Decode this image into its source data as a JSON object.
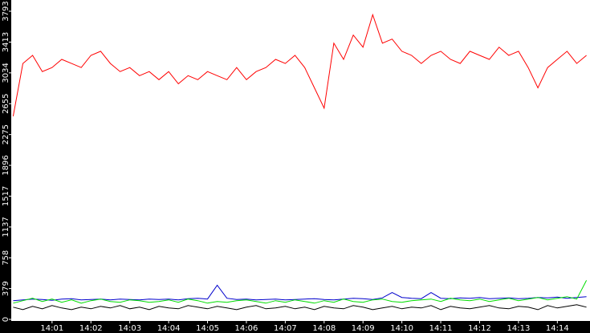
{
  "chart_data": {
    "type": "line",
    "x": [
      0,
      0.25,
      0.5,
      0.75,
      1,
      1.25,
      1.5,
      1.75,
      2,
      2.25,
      2.5,
      2.75,
      3,
      3.25,
      3.5,
      3.75,
      4,
      4.25,
      4.5,
      4.75,
      5,
      5.25,
      5.5,
      5.75,
      6,
      6.25,
      6.5,
      6.75,
      7,
      7.25,
      7.5,
      7.75,
      8,
      8.25,
      8.5,
      8.75,
      9,
      9.25,
      9.5,
      9.75,
      10,
      10.25,
      10.5,
      10.75,
      11,
      11.25,
      11.5,
      11.75,
      12,
      12.25,
      12.5,
      12.75,
      13,
      13.25,
      13.5,
      13.75,
      14,
      14.25,
      14.5,
      14.75
    ],
    "xlim": [
      -0.05,
      14.84
    ],
    "xticks": [
      {
        "value": 1,
        "label": "14:01"
      },
      {
        "value": 2,
        "label": "14:02"
      },
      {
        "value": 3,
        "label": "14:03"
      },
      {
        "value": 4,
        "label": "14:04"
      },
      {
        "value": 5,
        "label": "14:05"
      },
      {
        "value": 6,
        "label": "14:06"
      },
      {
        "value": 7,
        "label": "14:07"
      },
      {
        "value": 8,
        "label": "14:08"
      },
      {
        "value": 9,
        "label": "14:09"
      },
      {
        "value": 10,
        "label": "14:10"
      },
      {
        "value": 11,
        "label": "14:11"
      },
      {
        "value": 12,
        "label": "14:12"
      },
      {
        "value": 13,
        "label": "14:13"
      },
      {
        "value": 14,
        "label": "14:14"
      }
    ],
    "ylim": [
      0,
      3793
    ],
    "yticks": [
      0,
      379,
      758,
      1137,
      1517,
      1896,
      2275,
      2655,
      3034,
      3413,
      3793
    ],
    "series": [
      {
        "color": "#ff0000",
        "values": [
          2500,
          3150,
          3250,
          3050,
          3100,
          3200,
          3150,
          3100,
          3250,
          3300,
          3150,
          3050,
          3100,
          3000,
          3050,
          2950,
          3050,
          2900,
          3000,
          2950,
          3050,
          3000,
          2950,
          3100,
          2950,
          3050,
          3100,
          3200,
          3150,
          3250,
          3100,
          2850,
          2600,
          3400,
          3200,
          3500,
          3350,
          3750,
          3400,
          3450,
          3300,
          3250,
          3150,
          3250,
          3300,
          3200,
          3150,
          3300,
          3250,
          3200,
          3350,
          3250,
          3300,
          3100,
          2850,
          3100,
          3200,
          3300,
          3150,
          3250
        ]
      },
      {
        "color": "#0000cc",
        "values": [
          230,
          240,
          250,
          245,
          235,
          250,
          255,
          240,
          245,
          250,
          240,
          250,
          245,
          240,
          250,
          245,
          250,
          240,
          255,
          260,
          250,
          420,
          260,
          245,
          250,
          240,
          245,
          250,
          240,
          245,
          250,
          255,
          245,
          240,
          250,
          260,
          255,
          245,
          265,
          330,
          270,
          260,
          255,
          330,
          260,
          255,
          265,
          260,
          270,
          255,
          260,
          265,
          255,
          260,
          270,
          265,
          275,
          260,
          270,
          280
        ]
      },
      {
        "color": "#00dd00",
        "values": [
          200,
          230,
          260,
          220,
          250,
          210,
          240,
          200,
          230,
          250,
          220,
          210,
          240,
          230,
          210,
          220,
          240,
          210,
          250,
          230,
          200,
          220,
          210,
          230,
          240,
          220,
          200,
          230,
          210,
          240,
          220,
          200,
          230,
          210,
          250,
          220,
          210,
          240,
          250,
          220,
          210,
          230,
          240,
          250,
          220,
          260,
          240,
          230,
          250,
          220,
          240,
          260,
          230,
          250,
          270,
          240,
          260,
          280,
          250,
          480
        ]
      },
      {
        "color": "#000000",
        "values": [
          150,
          120,
          160,
          130,
          170,
          140,
          120,
          150,
          130,
          160,
          140,
          170,
          130,
          150,
          120,
          160,
          140,
          130,
          170,
          150,
          130,
          160,
          140,
          120,
          150,
          170,
          130,
          140,
          160,
          130,
          150,
          120,
          160,
          140,
          130,
          170,
          150,
          120,
          140,
          160,
          130,
          150,
          140,
          170,
          120,
          160,
          140,
          130,
          150,
          170,
          140,
          130,
          160,
          150,
          120,
          170,
          140,
          160,
          180,
          150
        ]
      }
    ]
  }
}
